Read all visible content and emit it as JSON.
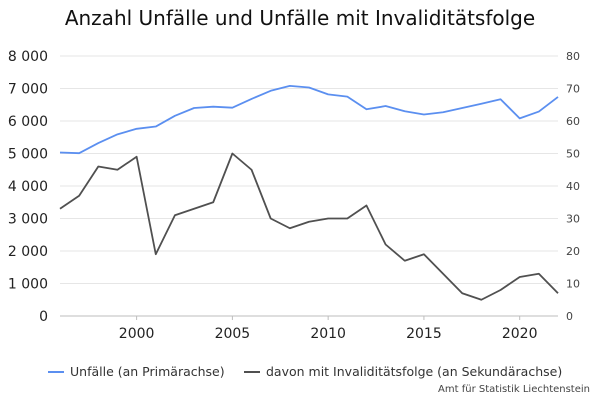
{
  "chart_data": {
    "type": "line",
    "title": "Anzahl Unfälle und Unfälle mit Invaliditätsfolge",
    "x": [
      1996,
      1997,
      1998,
      1999,
      2000,
      2001,
      2002,
      2003,
      2004,
      2005,
      2006,
      2007,
      2008,
      2009,
      2010,
      2011,
      2012,
      2013,
      2014,
      2015,
      2016,
      2017,
      2018,
      2019,
      2020,
      2021,
      2022
    ],
    "xlim": [
      1996,
      2022
    ],
    "xticks": [
      "2000",
      "2005",
      "2010",
      "2015",
      "2020"
    ],
    "xtick_values": [
      2000,
      2005,
      2010,
      2015,
      2020
    ],
    "y_left": {
      "ylim": [
        0,
        8000
      ],
      "ticks": [
        0,
        1000,
        2000,
        3000,
        4000,
        5000,
        6000,
        7000,
        8000
      ],
      "tick_labels": [
        "0",
        "1 000",
        "2 000",
        "3 000",
        "4 000",
        "5 000",
        "6 000",
        "7 000",
        "8 000"
      ]
    },
    "y_right": {
      "ylim": [
        0,
        80
      ],
      "ticks": [
        0,
        10,
        20,
        30,
        40,
        50,
        60,
        70,
        80
      ],
      "tick_labels": [
        "0",
        "10",
        "20",
        "30",
        "40",
        "50",
        "60",
        "70",
        "80"
      ]
    },
    "grid": true,
    "legend_position": "bottom-left",
    "series": [
      {
        "name": "Unfälle (an Primärachse)",
        "axis": "left",
        "color": "#5b8ff0",
        "values": [
          5030,
          5010,
          5320,
          5590,
          5760,
          5830,
          6160,
          6400,
          6440,
          6410,
          6680,
          6930,
          7080,
          7030,
          6820,
          6750,
          6360,
          6460,
          6300,
          6200,
          6270,
          6400,
          6530,
          6670,
          6080,
          6290,
          6740
        ]
      },
      {
        "name": "davon mit Invaliditätsfolge (an Sekundärachse)",
        "axis": "right",
        "color": "#505050",
        "values": [
          33,
          37,
          46,
          45,
          49,
          19,
          31,
          33,
          35,
          50,
          45,
          30,
          27,
          29,
          30,
          30,
          34,
          22,
          17,
          19,
          13,
          7,
          5,
          8,
          12,
          13,
          7
        ]
      }
    ],
    "source": "Amt für Statistik Liechtenstein"
  }
}
